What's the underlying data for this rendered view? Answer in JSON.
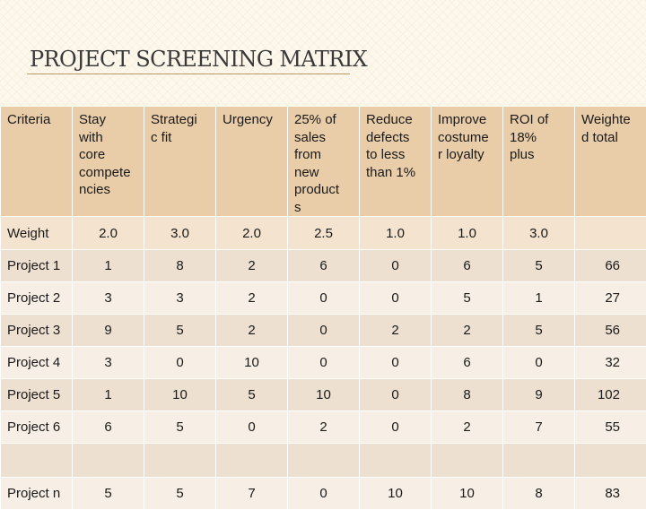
{
  "title": "PROJECT SCREENING MATRIX",
  "header": {
    "criteria": "Criteria",
    "columns": [
      [
        "Stay",
        "with",
        "core",
        "compete",
        "ncies"
      ],
      [
        "Strategi",
        "c fit"
      ],
      [
        "Urgency"
      ],
      [
        "25% of",
        "sales",
        "from",
        "new",
        "product",
        "s"
      ],
      [
        "Reduce",
        "defects",
        "to less",
        "than 1%"
      ],
      [
        "Improve",
        "costume",
        "r loyalty"
      ],
      [
        "ROI of",
        "18%",
        "plus"
      ],
      [
        "Weighte",
        "d total"
      ]
    ]
  },
  "weight": {
    "label": "Weight",
    "values": [
      "2.0",
      "3.0",
      "2.0",
      "2.5",
      "1.0",
      "1.0",
      "3.0",
      ""
    ]
  },
  "rows": [
    {
      "label": "Project 1",
      "values": [
        "1",
        "8",
        "2",
        "6",
        "0",
        "6",
        "5",
        "66"
      ]
    },
    {
      "label": "Project 2",
      "values": [
        "3",
        "3",
        "2",
        "0",
        "0",
        "5",
        "1",
        "27"
      ]
    },
    {
      "label": "Project 3",
      "values": [
        "9",
        "5",
        "2",
        "0",
        "2",
        "2",
        "5",
        "56"
      ]
    },
    {
      "label": "Project 4",
      "values": [
        "3",
        "0",
        "10",
        "0",
        "0",
        "6",
        "0",
        "32"
      ]
    },
    {
      "label": "Project 5",
      "values": [
        "1",
        "10",
        "5",
        "10",
        "0",
        "8",
        "9",
        "102"
      ]
    },
    {
      "label": "Project 6",
      "values": [
        "6",
        "5",
        "0",
        "2",
        "0",
        "2",
        "7",
        "55"
      ]
    },
    {
      "label": "",
      "values": [
        "",
        "",
        "",
        "",
        "",
        "",
        "",
        ""
      ]
    },
    {
      "label": "Project n",
      "values": [
        "5",
        "5",
        "7",
        "0",
        "10",
        "10",
        "8",
        "83"
      ]
    }
  ]
}
